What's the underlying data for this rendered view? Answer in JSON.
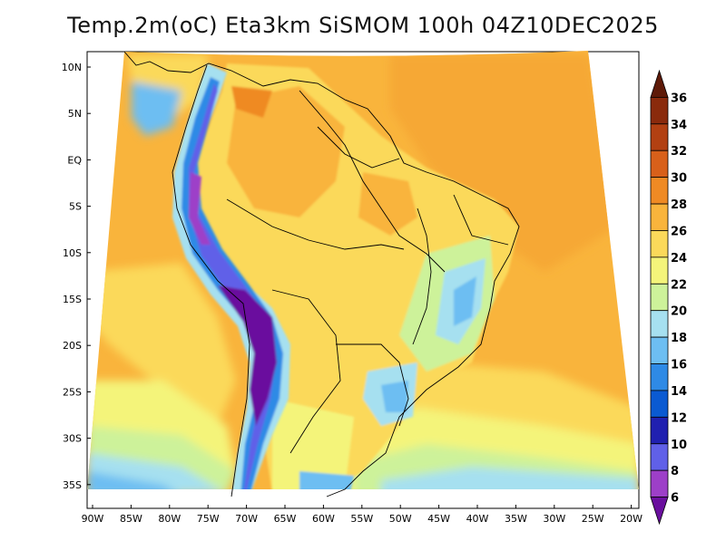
{
  "title": "Temp.2m(oC) Eta3km SiSMOM 100h 04Z10DEC2025",
  "map": {
    "variable": "Temperature at 2m (oC)",
    "region": "South America",
    "lat_labels": [
      "10N",
      "5N",
      "EQ",
      "5S",
      "10S",
      "15S",
      "20S",
      "25S",
      "30S",
      "35S"
    ],
    "lon_labels": [
      "90W",
      "85W",
      "80W",
      "75W",
      "70W",
      "65W",
      "60W",
      "55W",
      "50W",
      "45W",
      "40W",
      "35W",
      "30W",
      "25W",
      "20W"
    ]
  },
  "colorbar": {
    "levels": [
      "6",
      "8",
      "10",
      "12",
      "14",
      "16",
      "18",
      "20",
      "22",
      "24",
      "26",
      "28",
      "30",
      "32",
      "34",
      "36"
    ],
    "colors": [
      "#6a0f9e",
      "#9d3fc8",
      "#6060e8",
      "#2020b0",
      "#0a5ad2",
      "#2e8ae6",
      "#6dbef2",
      "#a6e0f0",
      "#cdf29a",
      "#f4f47a",
      "#fbd95a",
      "#f9b43c",
      "#ef8a24",
      "#d8601a",
      "#b24012",
      "#8a2a0c",
      "#5e1a08"
    ]
  }
}
